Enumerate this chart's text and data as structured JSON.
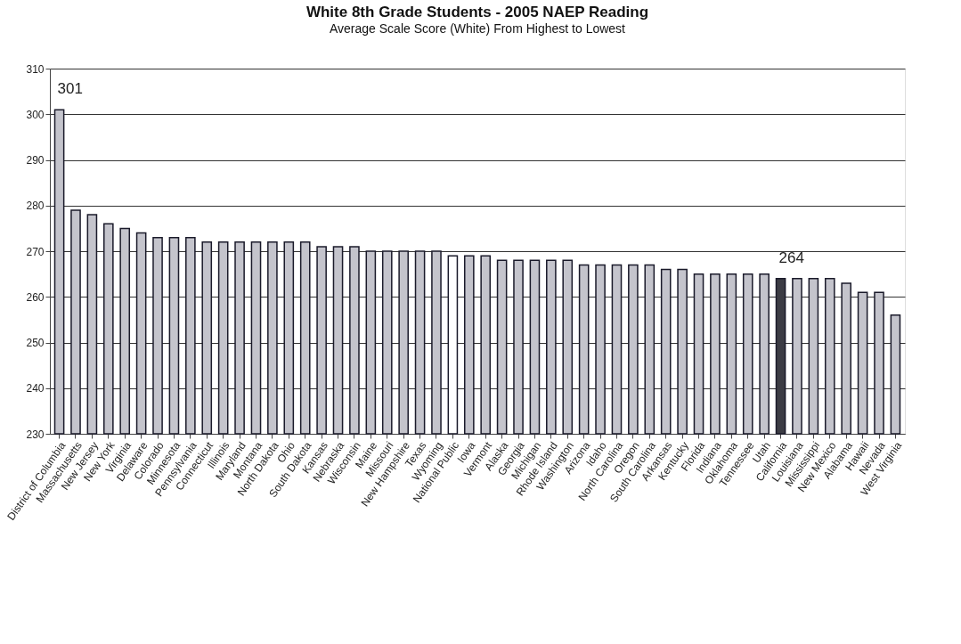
{
  "chart_data": {
    "type": "bar",
    "title": "White 8th Grade Students - 2005 NAEP Reading",
    "subtitle": "Average Scale Score (White) From Highest to Lowest",
    "categories": [
      "District of Columbia",
      "Massachusetts",
      "New Jersey",
      "New York",
      "Virginia",
      "Delaware",
      "Colorado",
      "Minnesota",
      "Pennsylvania",
      "Connecticut",
      "Illinois",
      "Maryland",
      "Montana",
      "North Dakota",
      "Ohio",
      "South Dakota",
      "Kansas",
      "Nebraska",
      "Wisconsin",
      "Maine",
      "Missouri",
      "New Hampshire",
      "Texas",
      "Wyoming",
      "National Public",
      "Iowa",
      "Vermont",
      "Alaska",
      "Georgia",
      "Michigan",
      "Rhode Island",
      "Washington",
      "Arizona",
      "Idaho",
      "North Carolina",
      "Oregon",
      "South Carolina",
      "Arkansas",
      "Kentucky",
      "Florida",
      "Indiana",
      "Oklahoma",
      "Tennessee",
      "Utah",
      "California",
      "Louisiana",
      "Mississippi",
      "New Mexico",
      "Alabama",
      "Hawaii",
      "Nevada",
      "West Virginia"
    ],
    "values": [
      301,
      279,
      278,
      276,
      275,
      274,
      273,
      273,
      273,
      272,
      272,
      272,
      272,
      272,
      272,
      272,
      271,
      271,
      271,
      270,
      270,
      270,
      270,
      270,
      269,
      269,
      269,
      268,
      268,
      268,
      268,
      268,
      267,
      267,
      267,
      267,
      267,
      266,
      266,
      265,
      265,
      265,
      265,
      265,
      264,
      264,
      264,
      264,
      263,
      261,
      261,
      256
    ],
    "colors": [
      "#c4c4cc",
      "#c4c4cc",
      "#c4c4cc",
      "#c4c4cc",
      "#c4c4cc",
      "#c4c4cc",
      "#c4c4cc",
      "#c4c4cc",
      "#c4c4cc",
      "#c4c4cc",
      "#c4c4cc",
      "#c4c4cc",
      "#c4c4cc",
      "#c4c4cc",
      "#c4c4cc",
      "#c4c4cc",
      "#c4c4cc",
      "#c4c4cc",
      "#c4c4cc",
      "#c4c4cc",
      "#c4c4cc",
      "#c4c4cc",
      "#c4c4cc",
      "#c4c4cc",
      "#ffffff",
      "#c4c4cc",
      "#c4c4cc",
      "#c4c4cc",
      "#c4c4cc",
      "#c4c4cc",
      "#c4c4cc",
      "#c4c4cc",
      "#c4c4cc",
      "#c4c4cc",
      "#c4c4cc",
      "#c4c4cc",
      "#c4c4cc",
      "#c4c4cc",
      "#c4c4cc",
      "#c4c4cc",
      "#c4c4cc",
      "#c4c4cc",
      "#c4c4cc",
      "#c4c4cc",
      "#3c3c44",
      "#c4c4cc",
      "#c4c4cc",
      "#c4c4cc",
      "#c4c4cc",
      "#c4c4cc",
      "#c4c4cc",
      "#c4c4cc"
    ],
    "ylim": [
      230,
      310
    ],
    "yticks": [
      230,
      240,
      250,
      260,
      270,
      280,
      290,
      300,
      310
    ],
    "grid": "y",
    "annotations": [
      {
        "text": "301",
        "x": "District of Columbia",
        "y": 301
      },
      {
        "text": "264",
        "x": "California",
        "y": 264
      }
    ]
  }
}
